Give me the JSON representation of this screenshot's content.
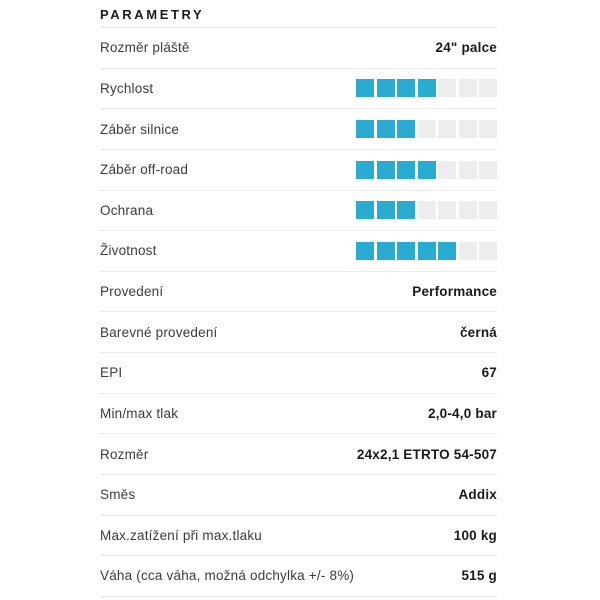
{
  "title": "PARAMETRY",
  "rating_max": 7,
  "colors": {
    "accent": "#29abd2",
    "rating_empty": "#ededed",
    "separator": "#ececec",
    "title_text": "#1d1d1d",
    "label_text": "#3c3c3c",
    "value_text": "#1a1a1a",
    "background": "#ffffff"
  },
  "rows": [
    {
      "type": "text",
      "label": "Rozměr pláště",
      "value": "24\" palce"
    },
    {
      "type": "rating",
      "label": "Rychlost",
      "rating": 4
    },
    {
      "type": "rating",
      "label": "Záběr silnice",
      "rating": 3
    },
    {
      "type": "rating",
      "label": "Záběr off-road",
      "rating": 4
    },
    {
      "type": "rating",
      "label": "Ochrana",
      "rating": 3
    },
    {
      "type": "rating",
      "label": "Životnost",
      "rating": 5
    },
    {
      "type": "text",
      "label": "Provedení",
      "value": "Performance"
    },
    {
      "type": "text",
      "label": "Barevné provedení",
      "value": "černá"
    },
    {
      "type": "text",
      "label": "EPI",
      "value": "67"
    },
    {
      "type": "text",
      "label": "Min/max tlak",
      "value": "2,0-4,0 bar"
    },
    {
      "type": "text",
      "label": "Rozměr",
      "value": "24x2,1 ETRTO 54-507"
    },
    {
      "type": "text",
      "label": "Směs",
      "value": "Addix"
    },
    {
      "type": "text",
      "label": "Max.zatížení při max.tlaku",
      "value": "100 kg"
    },
    {
      "type": "text",
      "label": "Váha (cca váha, možná odchylka +/- 8%)",
      "value": "515 g"
    }
  ]
}
